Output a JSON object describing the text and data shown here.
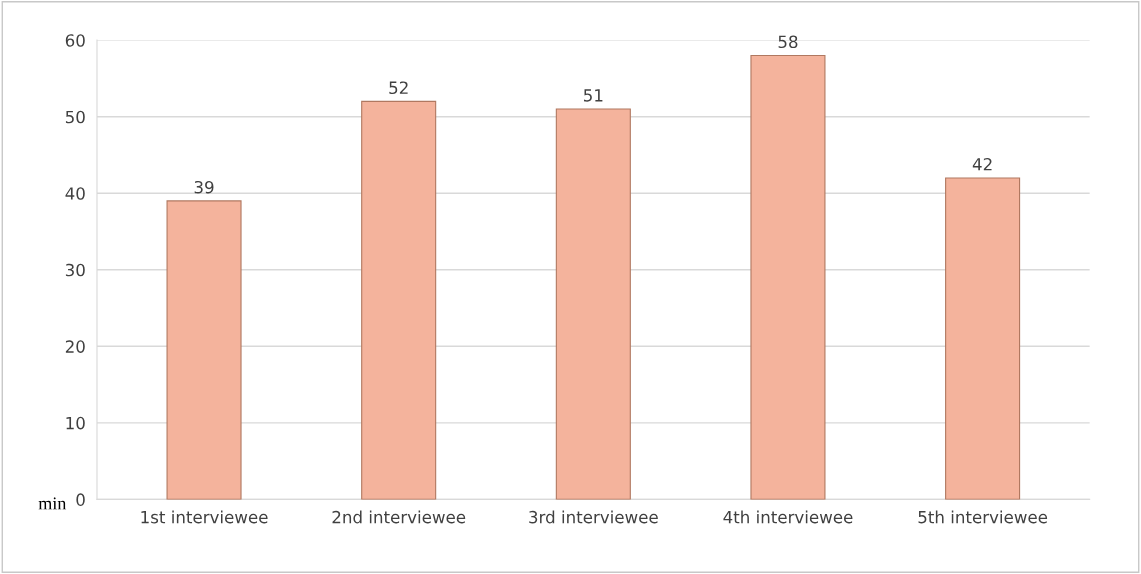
{
  "chart_data": {
    "type": "bar",
    "categories": [
      "1st interviewee",
      "2nd interviewee",
      "3rd interviewee",
      "4th interviewee",
      "5th interviewee"
    ],
    "values": [
      39,
      52,
      51,
      58,
      42
    ],
    "color": "#f4b39c",
    "ylabel": "min",
    "ylim": [
      0,
      60
    ],
    "yticks": [
      0,
      10,
      20,
      30,
      40,
      50,
      60
    ],
    "grid": "y",
    "data_labels": true
  }
}
